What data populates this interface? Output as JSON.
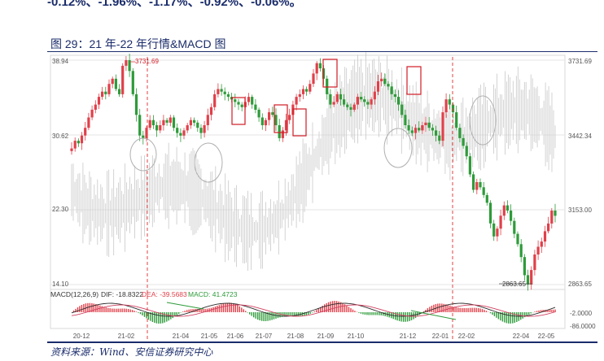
{
  "page": {
    "top_text": "-0.12%、-1.96%、-1.17%、-0.92%、-0.06%。",
    "figure_title": "图 29：21 年-22 年行情&MACD 图",
    "source": "资料来源：Wind、安信证券研究中心"
  },
  "chart_data": {
    "type": "candlestick",
    "title": "",
    "left_axis_labels": [
      "38.94",
      "30.62",
      "22.30",
      "14.10"
    ],
    "right_axis_labels": [
      "3731.69",
      "3442.34",
      "3153.00",
      "2863.65"
    ],
    "price_axis": {
      "min": 2863.65,
      "max": 3731.69
    },
    "x_ticks": [
      "20-12",
      "21-02",
      "21-04",
      "21-05",
      "21-06",
      "21-07",
      "21-08",
      "21-09",
      "21-10",
      "21-12",
      "22-01",
      "22-02",
      "22-04",
      "22-05"
    ],
    "annotations": {
      "high_label": "3731.69",
      "low_label": "2863.65"
    },
    "price_series": [
      3390,
      3420,
      3410,
      3440,
      3470,
      3510,
      3540,
      3560,
      3590,
      3610,
      3600,
      3640,
      3660,
      3620,
      3600,
      3710,
      3731.69,
      3690,
      3600,
      3520,
      3440,
      3430,
      3470,
      3500,
      3480,
      3460,
      3480,
      3500,
      3490,
      3510,
      3470,
      3450,
      3440,
      3460,
      3480,
      3500,
      3490,
      3470,
      3450,
      3480,
      3520,
      3550,
      3600,
      3620,
      3610,
      3600,
      3590,
      3580,
      3570,
      3560,
      3550,
      3570,
      3590,
      3560,
      3540,
      3510,
      3480,
      3500,
      3530,
      3520,
      3480,
      3430,
      3460,
      3500,
      3520,
      3560,
      3590,
      3600,
      3620,
      3610,
      3640,
      3680,
      3720,
      3700,
      3660,
      3600,
      3560,
      3570,
      3600,
      3580,
      3560,
      3550,
      3540,
      3560,
      3590,
      3580,
      3570,
      3560,
      3580,
      3610,
      3650,
      3660,
      3640,
      3630,
      3600,
      3590,
      3560,
      3520,
      3480,
      3460,
      3450,
      3470,
      3460,
      3480,
      3490,
      3470,
      3460,
      3440,
      3420,
      3530,
      3580,
      3560,
      3530,
      3470,
      3430,
      3400,
      3360,
      3290,
      3230,
      3260,
      3240,
      3210,
      3180,
      3100,
      3050,
      3080,
      3130,
      3170,
      3150,
      3110,
      3060,
      3020,
      2970,
      2900,
      2863.65,
      2920,
      2980,
      3010,
      3030,
      3070,
      3100,
      3150,
      3130
    ],
    "macd": {
      "label": "MACD(12,26,9)",
      "dif_label": "DIF: -18.8322",
      "dea_label": "DEA: -39.5683",
      "macd_label": "MACD: 41.4723",
      "axis_labels": [
        "-2.0000",
        "-86.0000"
      ]
    },
    "colors": {
      "up": "#e0404a",
      "down": "#2e9b3a",
      "background_series": "#c8c8c8",
      "dif": "#2c2c2c",
      "dea": "#d04060",
      "highlight_box": "#d01c24",
      "marker_line": "#e04040"
    }
  }
}
